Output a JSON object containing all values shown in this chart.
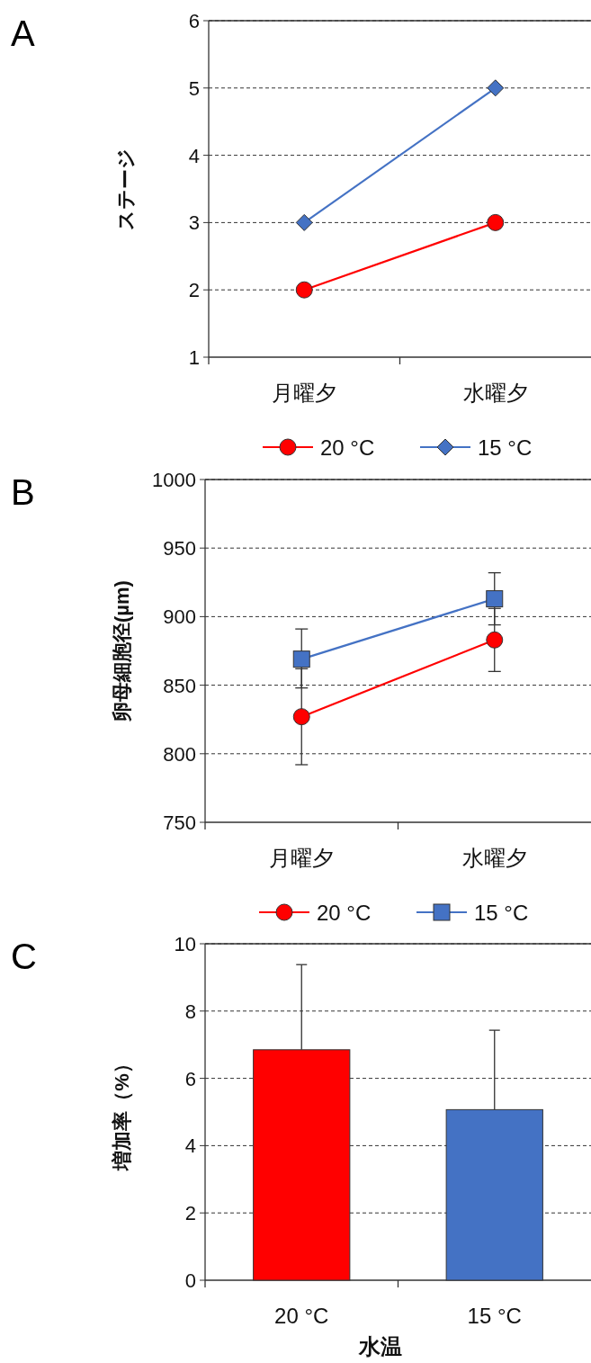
{
  "chart_data": [
    {
      "type": "line",
      "title": "A",
      "ylabel": "ステージ",
      "categories": [
        "月曜夕",
        "水曜夕"
      ],
      "ylim": [
        1,
        6
      ],
      "yticks": [
        1,
        2,
        3,
        4,
        5,
        6
      ],
      "grid": "y",
      "legend": "bottom",
      "line_style": "solid",
      "series": [
        {
          "name": "20 °C",
          "color": "#ff0000",
          "marker": "circle",
          "values": [
            2,
            3
          ]
        },
        {
          "name": "15 °C",
          "color": "#4472c4",
          "marker": "diamond",
          "values": [
            3,
            5
          ]
        }
      ]
    },
    {
      "type": "line",
      "title": "B",
      "ylabel": "卵母細胞径(µm)",
      "categories": [
        "月曜夕",
        "水曜夕"
      ],
      "ylim": [
        750,
        1000
      ],
      "yticks": [
        750,
        800,
        850,
        900,
        950,
        1000
      ],
      "grid": "y",
      "legend": "bottom",
      "line_style": "solid",
      "series": [
        {
          "name": "20 °C",
          "color": "#ff0000",
          "marker": "circle",
          "values": [
            827,
            883
          ],
          "errors": [
            35,
            23
          ]
        },
        {
          "name": "15 °C",
          "color": "#4472c4",
          "marker": "square",
          "values": [
            869,
            913
          ],
          "errors": [
            [
              848,
              891
            ],
            [
              894,
              932
            ]
          ]
        }
      ]
    },
    {
      "type": "bar",
      "title": "C",
      "ylabel": "増加率（%）",
      "xlabel": "水温",
      "categories": [
        "20 °C",
        "15 °C"
      ],
      "ylim": [
        0,
        10
      ],
      "yticks": [
        0,
        2,
        4,
        6,
        8,
        10
      ],
      "grid": "y",
      "values": [
        6.85,
        5.07
      ],
      "colors": [
        "#ff0000",
        "#4472c4"
      ],
      "errors": [
        [
          6.85,
          9.38
        ],
        [
          5.07,
          7.43
        ]
      ]
    }
  ]
}
